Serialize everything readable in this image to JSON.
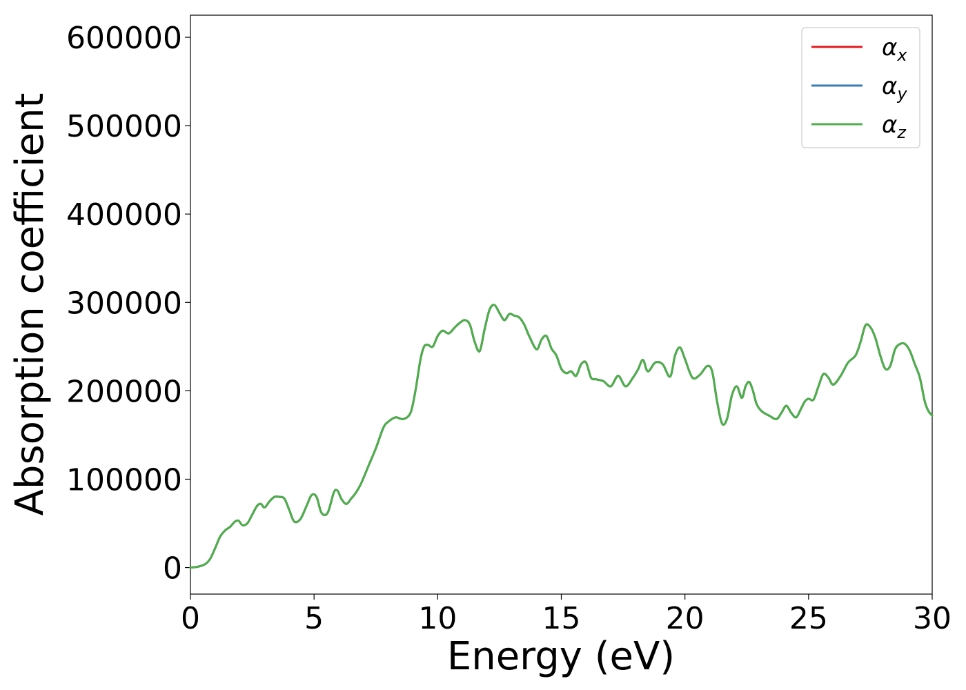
{
  "chart_data": {
    "type": "line",
    "xlabel": "Energy (eV)",
    "ylabel": "Absorption coefficient",
    "xlim": [
      0,
      30
    ],
    "ylim": [
      -30000,
      625000
    ],
    "xticks": [
      0,
      5,
      10,
      15,
      20,
      25,
      30
    ],
    "xtick_labels": [
      "0",
      "5",
      "10",
      "15",
      "20",
      "25",
      "30"
    ],
    "yticks": [
      0,
      100000,
      200000,
      300000,
      400000,
      500000,
      600000
    ],
    "ytick_labels": [
      "0",
      "100000",
      "200000",
      "300000",
      "400000",
      "500000",
      "600000"
    ],
    "grid": false,
    "legend_position": "top-right",
    "x": [
      0,
      0.3,
      0.6,
      0.8,
      1.0,
      1.2,
      1.4,
      1.6,
      1.8,
      1.95,
      2.1,
      2.3,
      2.5,
      2.7,
      2.85,
      3.0,
      3.2,
      3.4,
      3.6,
      3.8,
      4.0,
      4.2,
      4.45,
      4.7,
      4.9,
      5.1,
      5.3,
      5.55,
      5.8,
      5.95,
      6.1,
      6.3,
      6.5,
      6.7,
      6.9,
      7.2,
      7.5,
      7.8,
      8.0,
      8.3,
      8.6,
      8.9,
      9.1,
      9.3,
      9.45,
      9.6,
      9.8,
      10.0,
      10.2,
      10.45,
      10.7,
      10.9,
      11.1,
      11.3,
      11.5,
      11.7,
      11.9,
      12.1,
      12.3,
      12.5,
      12.7,
      12.9,
      13.1,
      13.3,
      13.5,
      13.7,
      14.0,
      14.2,
      14.4,
      14.6,
      14.8,
      15.0,
      15.2,
      15.4,
      15.6,
      15.8,
      16.0,
      16.2,
      16.4,
      16.7,
      17.0,
      17.3,
      17.6,
      17.9,
      18.1,
      18.3,
      18.5,
      18.8,
      19.1,
      19.4,
      19.6,
      19.8,
      20.0,
      20.3,
      20.6,
      20.9,
      21.1,
      21.3,
      21.5,
      21.7,
      21.9,
      22.1,
      22.3,
      22.45,
      22.6,
      22.75,
      22.9,
      23.1,
      23.4,
      23.7,
      23.9,
      24.1,
      24.3,
      24.5,
      24.7,
      24.85,
      25.0,
      25.2,
      25.4,
      25.6,
      25.8,
      26.0,
      26.3,
      26.6,
      26.9,
      27.1,
      27.3,
      27.5,
      27.7,
      27.9,
      28.1,
      28.3,
      28.5,
      28.7,
      28.9,
      29.1,
      29.3,
      29.5,
      29.7,
      29.85,
      30.0
    ],
    "series": [
      {
        "name": "αx",
        "color": "#e41a1c",
        "values": [
          0,
          1000,
          4000,
          10000,
          22000,
          35000,
          42000,
          46000,
          52000,
          53000,
          48000,
          50000,
          60000,
          70000,
          72000,
          68000,
          75000,
          80000,
          80000,
          78000,
          65000,
          52000,
          55000,
          70000,
          82000,
          80000,
          62000,
          62000,
          85000,
          87000,
          78000,
          72000,
          78000,
          85000,
          95000,
          115000,
          135000,
          158000,
          165000,
          170000,
          168000,
          175000,
          200000,
          235000,
          250000,
          252000,
          250000,
          262000,
          268000,
          265000,
          272000,
          277000,
          280000,
          275000,
          255000,
          245000,
          270000,
          292000,
          297000,
          288000,
          280000,
          287000,
          285000,
          283000,
          275000,
          262000,
          247000,
          258000,
          262000,
          248000,
          240000,
          225000,
          220000,
          222000,
          217000,
          230000,
          232000,
          215000,
          213000,
          211000,
          205000,
          217000,
          205000,
          215000,
          224000,
          235000,
          222000,
          232000,
          230000,
          216000,
          240000,
          249000,
          236000,
          215000,
          218000,
          228000,
          222000,
          188000,
          163000,
          168000,
          195000,
          205000,
          192000,
          205000,
          210000,
          200000,
          185000,
          177000,
          172000,
          168000,
          175000,
          183000,
          175000,
          170000,
          180000,
          188000,
          191000,
          190000,
          205000,
          219000,
          215000,
          207000,
          217000,
          232000,
          240000,
          255000,
          274000,
          272000,
          260000,
          240000,
          225000,
          228000,
          247000,
          253000,
          253000,
          245000,
          230000,
          215000,
          188000,
          177000,
          172000
        ]
      },
      {
        "name": "αy",
        "color": "#377eb8",
        "values": [
          0,
          1000,
          4000,
          10000,
          22000,
          35000,
          42000,
          46000,
          52000,
          53000,
          48000,
          50000,
          60000,
          70000,
          72000,
          68000,
          75000,
          80000,
          80000,
          78000,
          65000,
          52000,
          55000,
          70000,
          82000,
          80000,
          62000,
          62000,
          85000,
          87000,
          78000,
          72000,
          78000,
          85000,
          95000,
          115000,
          135000,
          158000,
          165000,
          170000,
          168000,
          175000,
          200000,
          235000,
          250000,
          252000,
          250000,
          262000,
          268000,
          265000,
          272000,
          277000,
          280000,
          275000,
          255000,
          245000,
          270000,
          292000,
          297000,
          288000,
          280000,
          287000,
          285000,
          283000,
          275000,
          262000,
          247000,
          258000,
          262000,
          248000,
          240000,
          225000,
          220000,
          222000,
          217000,
          230000,
          232000,
          215000,
          213000,
          211000,
          205000,
          217000,
          205000,
          215000,
          224000,
          235000,
          222000,
          232000,
          230000,
          216000,
          240000,
          249000,
          236000,
          215000,
          218000,
          228000,
          222000,
          188000,
          163000,
          168000,
          195000,
          205000,
          192000,
          205000,
          210000,
          200000,
          185000,
          177000,
          172000,
          168000,
          175000,
          183000,
          175000,
          170000,
          180000,
          188000,
          191000,
          190000,
          205000,
          219000,
          215000,
          207000,
          217000,
          232000,
          240000,
          255000,
          274000,
          272000,
          260000,
          240000,
          225000,
          228000,
          247000,
          253000,
          253000,
          245000,
          230000,
          215000,
          188000,
          177000,
          172000
        ]
      },
      {
        "name": "αz",
        "color": "#4daf4a",
        "values": [
          0,
          1000,
          4000,
          10000,
          22000,
          35000,
          42000,
          46000,
          52000,
          53000,
          48000,
          50000,
          60000,
          70000,
          72000,
          68000,
          75000,
          80000,
          80000,
          78000,
          65000,
          52000,
          55000,
          70000,
          82000,
          80000,
          62000,
          62000,
          85000,
          87000,
          78000,
          72000,
          78000,
          85000,
          95000,
          115000,
          135000,
          158000,
          165000,
          170000,
          168000,
          175000,
          200000,
          235000,
          250000,
          252000,
          250000,
          262000,
          268000,
          265000,
          272000,
          277000,
          280000,
          275000,
          255000,
          245000,
          270000,
          292000,
          297000,
          288000,
          280000,
          287000,
          285000,
          283000,
          275000,
          262000,
          247000,
          258000,
          262000,
          248000,
          240000,
          225000,
          220000,
          222000,
          217000,
          230000,
          232000,
          215000,
          213000,
          211000,
          205000,
          217000,
          205000,
          215000,
          224000,
          235000,
          222000,
          232000,
          230000,
          216000,
          240000,
          249000,
          236000,
          215000,
          218000,
          228000,
          222000,
          188000,
          163000,
          168000,
          195000,
          205000,
          192000,
          205000,
          210000,
          200000,
          185000,
          177000,
          172000,
          168000,
          175000,
          183000,
          175000,
          170000,
          180000,
          188000,
          191000,
          190000,
          205000,
          219000,
          215000,
          207000,
          217000,
          232000,
          240000,
          255000,
          274000,
          272000,
          260000,
          240000,
          225000,
          228000,
          247000,
          253000,
          253000,
          245000,
          230000,
          215000,
          188000,
          177000,
          172000
        ]
      }
    ],
    "legend": [
      {
        "symbol": "α",
        "sub": "x",
        "color": "#e41a1c"
      },
      {
        "symbol": "α",
        "sub": "y",
        "color": "#377eb8"
      },
      {
        "symbol": "α",
        "sub": "z",
        "color": "#4daf4a"
      }
    ]
  }
}
